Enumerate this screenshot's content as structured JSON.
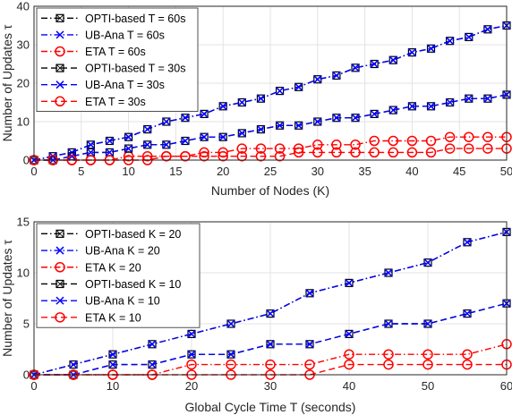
{
  "chart_data": [
    {
      "type": "line",
      "xlabel": "Number of Nodes (K)",
      "ylabel": "Number of Updates τ",
      "xlim": [
        0,
        50
      ],
      "ylim": [
        0,
        40
      ],
      "xticks": [
        0,
        5,
        10,
        15,
        20,
        25,
        30,
        35,
        40,
        45,
        50
      ],
      "yticks": [
        0,
        10,
        20,
        30,
        40
      ],
      "grid": true,
      "legend": "top-left",
      "x": [
        0,
        2,
        4,
        6,
        8,
        10,
        12,
        14,
        16,
        18,
        20,
        22,
        24,
        26,
        28,
        30,
        32,
        34,
        36,
        38,
        40,
        42,
        44,
        46,
        48,
        50
      ],
      "series": [
        {
          "name": "OPTI-based T = 60s",
          "color": "#000000",
          "marker": "square",
          "dash": "dashdot",
          "values": [
            0,
            1,
            2,
            4,
            5,
            6,
            8,
            10,
            11,
            12,
            14,
            15,
            16,
            18,
            19,
            21,
            22,
            24,
            25,
            26,
            28,
            29,
            31,
            32,
            34,
            35
          ]
        },
        {
          "name": "UB-Ana T = 60s",
          "color": "#0000ff",
          "marker": "x",
          "dash": "dashdot",
          "values": [
            0,
            1,
            2,
            4,
            5,
            6,
            8,
            10,
            11,
            12,
            14,
            15,
            16,
            18,
            19,
            21,
            22,
            24,
            25,
            26,
            28,
            29,
            31,
            32,
            34,
            35
          ]
        },
        {
          "name": "ETA T = 60s",
          "color": "#ff0000",
          "marker": "circle",
          "dash": "dashdot",
          "values": [
            0,
            0,
            0,
            0,
            0,
            1,
            1,
            1,
            1,
            2,
            2,
            3,
            3,
            3,
            3,
            4,
            4,
            4,
            5,
            5,
            5,
            5,
            6,
            6,
            6,
            6
          ]
        },
        {
          "name": "OPTI-based T = 30s",
          "color": "#000000",
          "marker": "square",
          "dash": "dashed",
          "values": [
            0,
            0,
            1,
            2,
            2,
            3,
            4,
            4,
            5,
            6,
            6,
            7,
            8,
            9,
            9,
            10,
            11,
            11,
            12,
            13,
            14,
            14,
            15,
            16,
            16,
            17
          ]
        },
        {
          "name": "UB-Ana T = 30s",
          "color": "#0000ff",
          "marker": "x",
          "dash": "dashed",
          "values": [
            0,
            0,
            1,
            2,
            2,
            3,
            4,
            4,
            5,
            6,
            6,
            7,
            8,
            9,
            9,
            10,
            11,
            11,
            12,
            13,
            14,
            14,
            15,
            16,
            16,
            17
          ]
        },
        {
          "name": "ETA T = 30s",
          "color": "#ff0000",
          "marker": "circle",
          "dash": "dashed",
          "values": [
            0,
            0,
            0,
            0,
            0,
            0,
            0,
            1,
            1,
            1,
            1,
            1,
            1,
            1,
            2,
            2,
            2,
            2,
            2,
            2,
            2,
            2,
            3,
            3,
            3,
            3
          ]
        }
      ]
    },
    {
      "type": "line",
      "xlabel": "Global Cycle Time T (seconds)",
      "ylabel": "Number of Updates τ",
      "xlim": [
        0,
        60
      ],
      "ylim": [
        0,
        15
      ],
      "xticks": [
        0,
        10,
        20,
        30,
        40,
        50,
        60
      ],
      "yticks": [
        0,
        5,
        10,
        15
      ],
      "grid": true,
      "legend": "top-left",
      "x": [
        0,
        5,
        10,
        15,
        20,
        25,
        30,
        35,
        40,
        45,
        50,
        55,
        60
      ],
      "series": [
        {
          "name": "OPTI-based K = 20",
          "color": "#000000",
          "marker": "square",
          "dash": "dashdot",
          "values": [
            0,
            1,
            2,
            3,
            4,
            5,
            6,
            8,
            9,
            10,
            11,
            13,
            14
          ]
        },
        {
          "name": "UB-Ana K = 20",
          "color": "#0000ff",
          "marker": "x",
          "dash": "dashdot",
          "values": [
            0,
            1,
            2,
            3,
            4,
            5,
            6,
            8,
            9,
            10,
            11,
            13,
            14
          ]
        },
        {
          "name": "ETA K = 20",
          "color": "#ff0000",
          "marker": "circle",
          "dash": "dashdot",
          "values": [
            0,
            0,
            0,
            0,
            1,
            1,
            1,
            1,
            2,
            2,
            2,
            2,
            3
          ]
        },
        {
          "name": "OPTI-based K = 10",
          "color": "#000000",
          "marker": "square",
          "dash": "dashed",
          "values": [
            0,
            0,
            1,
            1,
            2,
            2,
            3,
            3,
            4,
            5,
            5,
            6,
            7
          ]
        },
        {
          "name": "UB-Ana K = 10",
          "color": "#0000ff",
          "marker": "x",
          "dash": "dashed",
          "values": [
            0,
            0,
            1,
            1,
            2,
            2,
            3,
            3,
            4,
            5,
            5,
            6,
            7
          ]
        },
        {
          "name": "ETA K = 10",
          "color": "#ff0000",
          "marker": "circle",
          "dash": "dashed",
          "values": [
            0,
            0,
            0,
            0,
            0,
            0,
            0,
            0,
            1,
            1,
            1,
            1,
            1
          ]
        }
      ]
    }
  ]
}
